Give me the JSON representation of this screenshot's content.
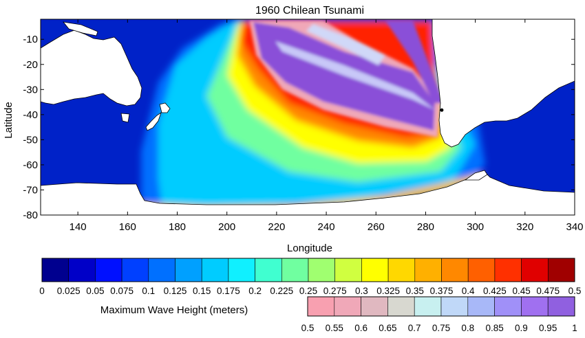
{
  "chart_data": {
    "type": "heatmap",
    "title": "1960 Chilean Tsunami",
    "xlabel": "Longitude",
    "ylabel": "Latitude",
    "xlim": [
      125,
      340
    ],
    "ylim": [
      -80,
      -2
    ],
    "x_ticks": [
      140,
      160,
      180,
      200,
      220,
      240,
      260,
      280,
      300,
      320,
      340
    ],
    "y_ticks": [
      -10,
      -20,
      -30,
      -40,
      -50,
      -60,
      -70,
      -80
    ],
    "source_epicenter": {
      "lon": 286.5,
      "lat": -38.2
    },
    "colorbar_main": {
      "label": "Maximum Wave Height (meters)",
      "ticks": [
        "0",
        "0.025",
        "0.05",
        "0.075",
        "0.1",
        "0.125",
        "0.15",
        "0.175",
        "0.2",
        "0.225",
        "0.25",
        "0.275",
        "0.3",
        "0.325",
        "0.35",
        "0.375",
        "0.4",
        "0.425",
        "0.45",
        "0.475",
        "0.5"
      ],
      "colors": [
        "#00008f",
        "#0000c8",
        "#0010ff",
        "#0040ff",
        "#0070ff",
        "#00a0ff",
        "#00ccff",
        "#10f0ff",
        "#40ffd0",
        "#70ffa0",
        "#a0ff70",
        "#d0ff40",
        "#ffff00",
        "#ffd800",
        "#ffb000",
        "#ff8800",
        "#ff6000",
        "#ff3000",
        "#e00000",
        "#a00000"
      ]
    },
    "colorbar_high": {
      "ticks": [
        "0.5",
        "0.55",
        "0.6",
        "0.65",
        "0.7",
        "0.75",
        "0.8",
        "0.85",
        "0.9",
        "0.95",
        "1"
      ],
      "colors": [
        "#f8a0b0",
        "#f0a8b8",
        "#e0b8c0",
        "#d8d8d0",
        "#c8f0f0",
        "#c0d8f8",
        "#a8b8f8",
        "#a090f8",
        "#a070f0",
        "#9060e0"
      ]
    }
  }
}
